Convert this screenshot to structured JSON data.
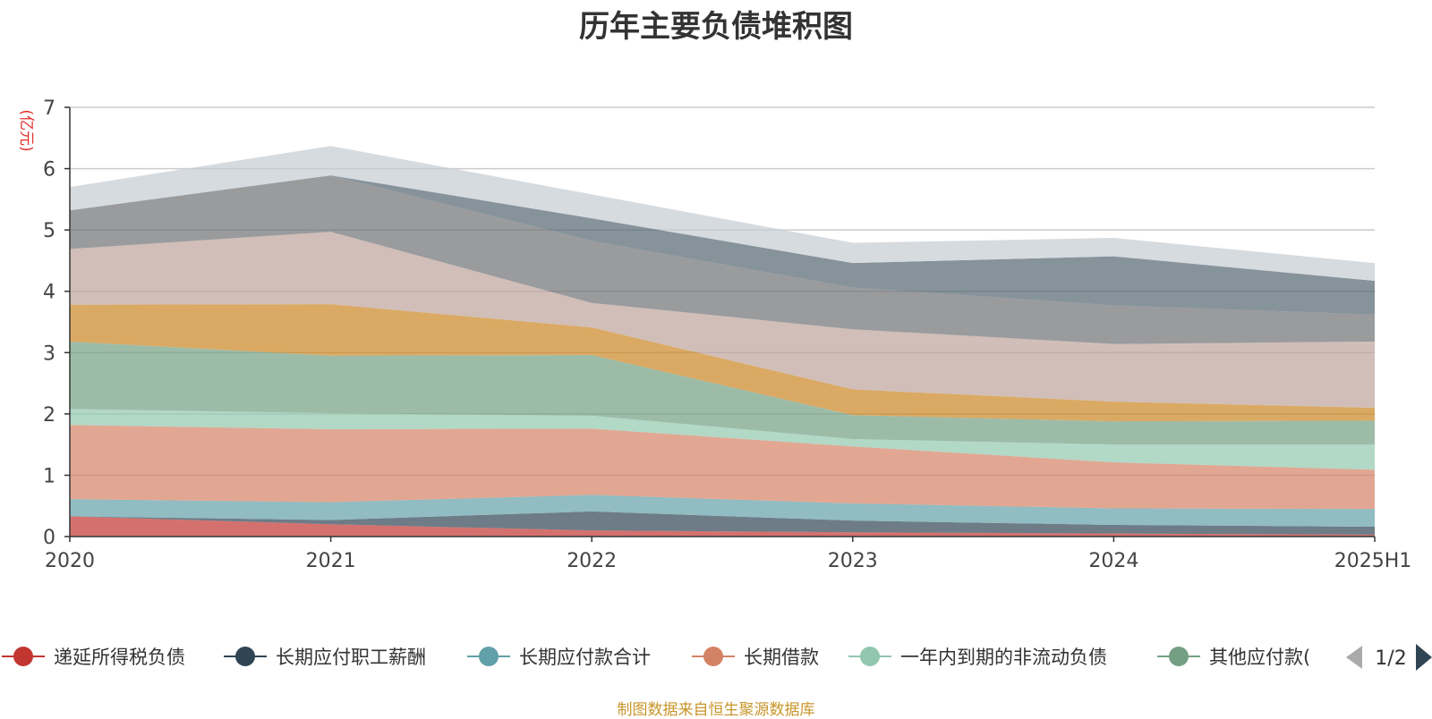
{
  "chart_data": {
    "type": "area",
    "title": "历年主要负债堆积图",
    "unit_label": "(亿元)",
    "source_note": "制图数据来自恒生聚源数据库",
    "categories": [
      "2020",
      "2021",
      "2022",
      "2023",
      "2024",
      "2025H1"
    ],
    "y_ticks": [
      "0",
      "1",
      "2",
      "3",
      "4",
      "5",
      "6",
      "7"
    ],
    "ylim": [
      0,
      7
    ],
    "grid": true,
    "stacked": true,
    "legend_position": "bottom",
    "legend_page": "1/2",
    "series": [
      {
        "name": "递延所得税负债",
        "color": "#c23531",
        "values": [
          0.33,
          0.2,
          0.1,
          0.07,
          0.05,
          0.03
        ]
      },
      {
        "name": "长期应付职工薪酬",
        "color": "#2f4554",
        "values": [
          0.0,
          0.07,
          0.31,
          0.19,
          0.14,
          0.13
        ]
      },
      {
        "name": "长期应付款合计",
        "color": "#61a0a8",
        "values": [
          0.28,
          0.29,
          0.27,
          0.28,
          0.27,
          0.29
        ]
      },
      {
        "name": "长期借款",
        "color": "#d48265",
        "values": [
          1.21,
          1.19,
          1.08,
          0.93,
          0.75,
          0.64
        ]
      },
      {
        "name": "一年内到期的非流动负债",
        "color": "#91c7ae",
        "values": [
          0.26,
          0.26,
          0.21,
          0.12,
          0.29,
          0.41
        ]
      },
      {
        "name": "其他应付款(",
        "color": "#749f83",
        "values": [
          1.1,
          0.94,
          0.99,
          0.39,
          0.38,
          0.39
        ]
      },
      {
        "series_page": 2,
        "color": "#ca8622",
        "values": [
          0.6,
          0.84,
          0.45,
          0.42,
          0.32,
          0.21
        ]
      },
      {
        "series_page": 2,
        "color": "#bda29a",
        "values": [
          0.91,
          1.18,
          0.4,
          0.98,
          0.94,
          1.08
        ]
      },
      {
        "series_page": 2,
        "color": "#6e7074",
        "values": [
          0.63,
          0.92,
          1.01,
          0.68,
          0.63,
          0.44
        ]
      },
      {
        "series_page": 2,
        "color": "#546570",
        "values": [
          0.0,
          0.0,
          0.37,
          0.4,
          0.8,
          0.55
        ]
      },
      {
        "series_page": 2,
        "color": "#c4ccd3",
        "values": [
          0.38,
          0.48,
          0.39,
          0.33,
          0.3,
          0.29
        ]
      }
    ]
  }
}
